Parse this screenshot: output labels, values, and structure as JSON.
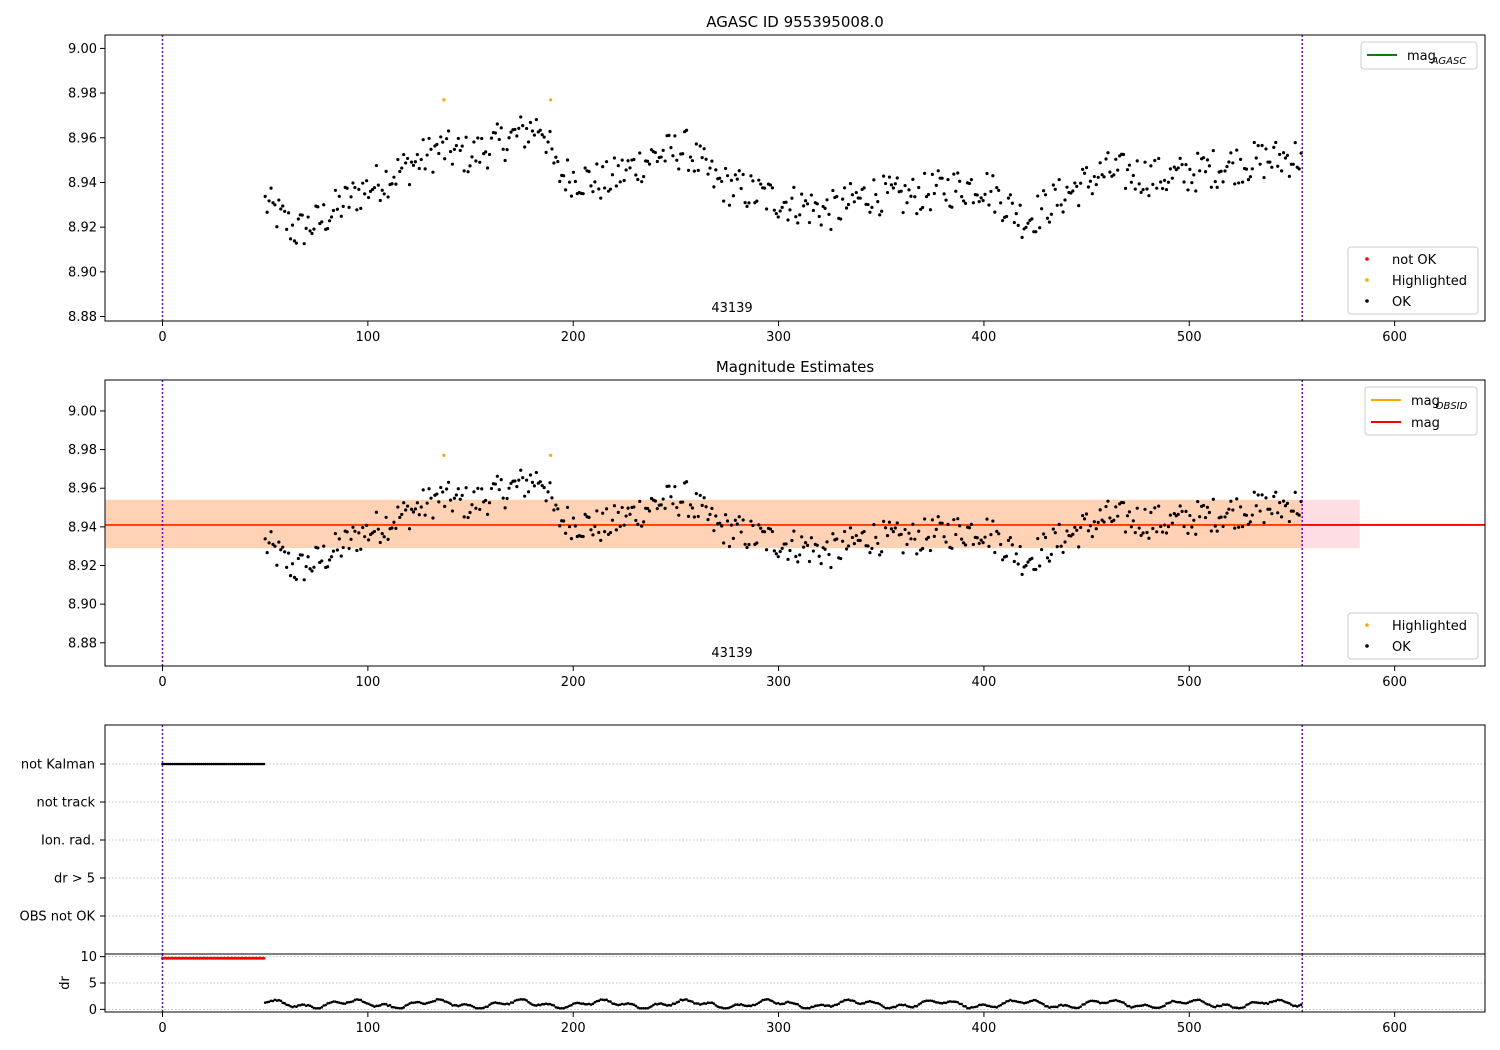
{
  "chart_data": [
    {
      "type": "scatter",
      "title": "AGASC ID 955395008.0",
      "xlim": [
        -28,
        644
      ],
      "ylim": [
        8.878,
        9.006
      ],
      "x_ticks": [
        0,
        100,
        200,
        300,
        400,
        500,
        600
      ],
      "y_ticks": [
        8.88,
        8.9,
        8.92,
        8.94,
        8.96,
        8.98,
        9.0
      ],
      "annotation": "43139",
      "vlines": [
        0,
        555
      ],
      "highlighted_points": [
        {
          "x": 137,
          "y": 8.977
        },
        {
          "x": 189,
          "y": 8.977
        }
      ],
      "legend_upper": {
        "position": "top-right",
        "entries": [
          {
            "label": "mag",
            "subscript": "AGASC",
            "color": "#008000"
          }
        ]
      },
      "legend_lower": {
        "position": "bottom-right",
        "entries": [
          {
            "label": "not OK",
            "color": "#ff0000"
          },
          {
            "label": "Highlighted",
            "color": "#ffa500"
          },
          {
            "label": "OK",
            "color": "#000000"
          }
        ]
      },
      "series_ok_x_range": [
        50,
        555
      ],
      "series_ok_y_range": [
        8.909,
        8.97
      ]
    },
    {
      "type": "scatter",
      "title": "Magnitude Estimates",
      "xlim": [
        -28,
        644
      ],
      "ylim": [
        8.868,
        9.016
      ],
      "x_ticks": [
        0,
        100,
        200,
        300,
        400,
        500,
        600
      ],
      "y_ticks": [
        8.88,
        8.9,
        8.92,
        8.94,
        8.96,
        8.98,
        9.0
      ],
      "annotation": "43139",
      "vlines": [
        0,
        555
      ],
      "mag": 8.941,
      "mag_band": [
        8.929,
        8.954
      ],
      "mag_band_x": [
        -28,
        583
      ],
      "mag_obsid_band_x": [
        -28,
        555
      ],
      "highlighted_points": [
        {
          "x": 137,
          "y": 8.977
        },
        {
          "x": 189,
          "y": 8.977
        }
      ],
      "legend_upper": {
        "position": "top-right",
        "entries": [
          {
            "label": "mag",
            "subscript": "OBSID",
            "color": "#ffa500"
          },
          {
            "label": "mag",
            "subscript": "",
            "color": "#ff0000"
          }
        ]
      },
      "legend_lower": {
        "position": "bottom-right",
        "entries": [
          {
            "label": "Highlighted",
            "color": "#ffa500"
          },
          {
            "label": "OK",
            "color": "#000000"
          }
        ]
      }
    },
    {
      "type": "scatter",
      "xlim": [
        -28,
        644
      ],
      "x_ticks": [
        0,
        100,
        200,
        300,
        400,
        500,
        600
      ],
      "categories": [
        "not Kalman",
        "not track",
        "Ion. rad.",
        "dr > 5",
        "OBS not OK"
      ],
      "flag_ranges": [
        {
          "category": "not Kalman",
          "x": [
            0,
            50
          ]
        }
      ],
      "vlines": [
        0,
        555
      ]
    },
    {
      "type": "scatter",
      "ylabel": "dr",
      "xlim": [
        -28,
        644
      ],
      "ylim": [
        -0.5,
        10.5
      ],
      "y_ticks": [
        0,
        5,
        10
      ],
      "x_ticks": [
        0,
        100,
        200,
        300,
        400,
        500,
        600
      ],
      "red_points": {
        "x": [
          0,
          50
        ],
        "y": 9.7
      },
      "dr_series_x_range": [
        50,
        555
      ],
      "dr_series_y_range": [
        0.2,
        1.9
      ],
      "vlines": [
        0,
        555
      ]
    }
  ]
}
